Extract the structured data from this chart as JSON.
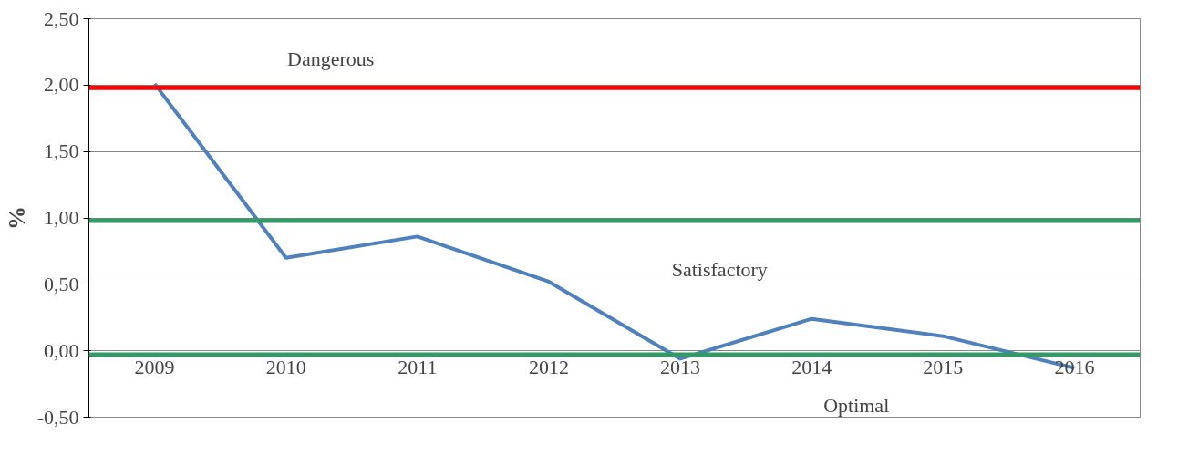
{
  "chart_data": {
    "type": "line",
    "ylabel": "%",
    "categories": [
      "2009",
      "2010",
      "2011",
      "2012",
      "2013",
      "2014",
      "2015",
      "2016"
    ],
    "series": [
      {
        "color": "#4f81bd",
        "values": [
          2.01,
          0.7,
          0.86,
          0.52,
          -0.06,
          0.24,
          0.11,
          -0.13
        ]
      }
    ],
    "ylim": [
      -0.5,
      2.5
    ],
    "yticks": [
      {
        "value": -0.5,
        "label": "-0,50"
      },
      {
        "value": 0,
        "label": "0,00"
      },
      {
        "value": 0.5,
        "label": "0,50"
      },
      {
        "value": 1,
        "label": "1,00"
      },
      {
        "value": 1.5,
        "label": "1,50"
      },
      {
        "value": 2,
        "label": "2,00"
      },
      {
        "value": 2.5,
        "label": "2,50"
      }
    ],
    "grid": "y",
    "marker": "none",
    "line_style": "solid",
    "ref_lines": [
      {
        "axis": "y",
        "value": 1.98,
        "color": "#ff0000"
      },
      {
        "axis": "y",
        "value": 0.98,
        "color": "#339966"
      },
      {
        "axis": "y",
        "value": -0.03,
        "color": "#339966"
      }
    ],
    "annotations": [
      "Dangerous",
      "Satisfactory",
      "Optimal"
    ]
  }
}
